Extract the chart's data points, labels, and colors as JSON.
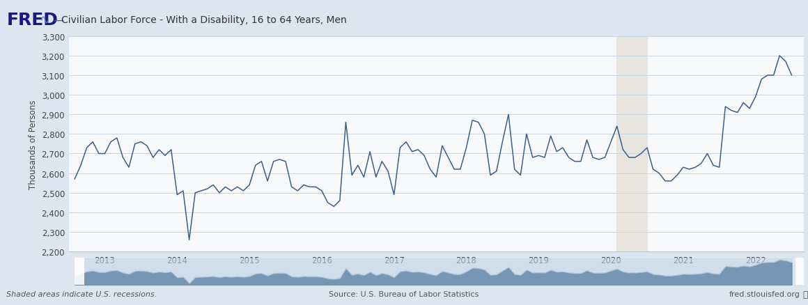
{
  "title": "Civilian Labor Force - With a Disability, 16 to 64 Years, Men",
  "ylabel": "Thousands of Persons",
  "bg_color": "#dce6f0",
  "plot_bg_color": "#f8f9fb",
  "line_color": "#3a5f8a",
  "recession_color": "#e8e4de",
  "recession_start": 2020.08,
  "recession_end": 2020.5,
  "ylim": [
    2200,
    3300
  ],
  "yticks": [
    2200,
    2300,
    2400,
    2500,
    2600,
    2700,
    2800,
    2900,
    3000,
    3100,
    3200,
    3300
  ],
  "xlim_start": 2012.5,
  "xlim_end": 2022.67,
  "xtick_years": [
    2013,
    2014,
    2015,
    2016,
    2017,
    2018,
    2019,
    2020,
    2021,
    2022
  ],
  "footer_text_left": "Shaded areas indicate U.S. recessions.",
  "footer_text_center": "Source: U.S. Bureau of Labor Statistics",
  "footer_text_right": "fred.stlouisfed.org",
  "dates": [
    2012.583,
    2012.667,
    2012.75,
    2012.833,
    2012.917,
    2013.0,
    2013.083,
    2013.167,
    2013.25,
    2013.333,
    2013.417,
    2013.5,
    2013.583,
    2013.667,
    2013.75,
    2013.833,
    2013.917,
    2014.0,
    2014.083,
    2014.167,
    2014.25,
    2014.333,
    2014.417,
    2014.5,
    2014.583,
    2014.667,
    2014.75,
    2014.833,
    2014.917,
    2015.0,
    2015.083,
    2015.167,
    2015.25,
    2015.333,
    2015.417,
    2015.5,
    2015.583,
    2015.667,
    2015.75,
    2015.833,
    2015.917,
    2016.0,
    2016.083,
    2016.167,
    2016.25,
    2016.333,
    2016.417,
    2016.5,
    2016.583,
    2016.667,
    2016.75,
    2016.833,
    2016.917,
    2017.0,
    2017.083,
    2017.167,
    2017.25,
    2017.333,
    2017.417,
    2017.5,
    2017.583,
    2017.667,
    2017.75,
    2017.833,
    2017.917,
    2018.0,
    2018.083,
    2018.167,
    2018.25,
    2018.333,
    2018.417,
    2018.5,
    2018.583,
    2018.667,
    2018.75,
    2018.833,
    2018.917,
    2019.0,
    2019.083,
    2019.167,
    2019.25,
    2019.333,
    2019.417,
    2019.5,
    2019.583,
    2019.667,
    2019.75,
    2019.833,
    2019.917,
    2020.0,
    2020.083,
    2020.167,
    2020.25,
    2020.333,
    2020.417,
    2020.5,
    2020.583,
    2020.667,
    2020.75,
    2020.833,
    2020.917,
    2021.0,
    2021.083,
    2021.167,
    2021.25,
    2021.333,
    2021.417,
    2021.5,
    2021.583,
    2021.667,
    2021.75,
    2021.833,
    2021.917,
    2022.0,
    2022.083,
    2022.167,
    2022.25,
    2022.333,
    2022.417,
    2022.5
  ],
  "values": [
    2570,
    2640,
    2730,
    2760,
    2700,
    2700,
    2760,
    2780,
    2680,
    2630,
    2750,
    2760,
    2740,
    2680,
    2720,
    2690,
    2720,
    2490,
    2510,
    2260,
    2500,
    2510,
    2520,
    2540,
    2500,
    2530,
    2510,
    2530,
    2510,
    2540,
    2640,
    2660,
    2560,
    2660,
    2670,
    2660,
    2530,
    2510,
    2540,
    2530,
    2530,
    2510,
    2450,
    2430,
    2460,
    2860,
    2590,
    2640,
    2580,
    2710,
    2580,
    2660,
    2610,
    2490,
    2730,
    2760,
    2710,
    2720,
    2690,
    2620,
    2580,
    2740,
    2680,
    2620,
    2620,
    2730,
    2870,
    2860,
    2800,
    2590,
    2610,
    2760,
    2900,
    2620,
    2590,
    2800,
    2680,
    2690,
    2680,
    2790,
    2710,
    2730,
    2680,
    2660,
    2660,
    2770,
    2680,
    2670,
    2680,
    2760,
    2840,
    2720,
    2680,
    2680,
    2700,
    2730,
    2620,
    2600,
    2560,
    2560,
    2590,
    2630,
    2620,
    2630,
    2650,
    2700,
    2640,
    2630,
    2940,
    2920,
    2910,
    2960,
    2930,
    2990,
    3080,
    3100,
    3100,
    3200,
    3170,
    3100
  ]
}
